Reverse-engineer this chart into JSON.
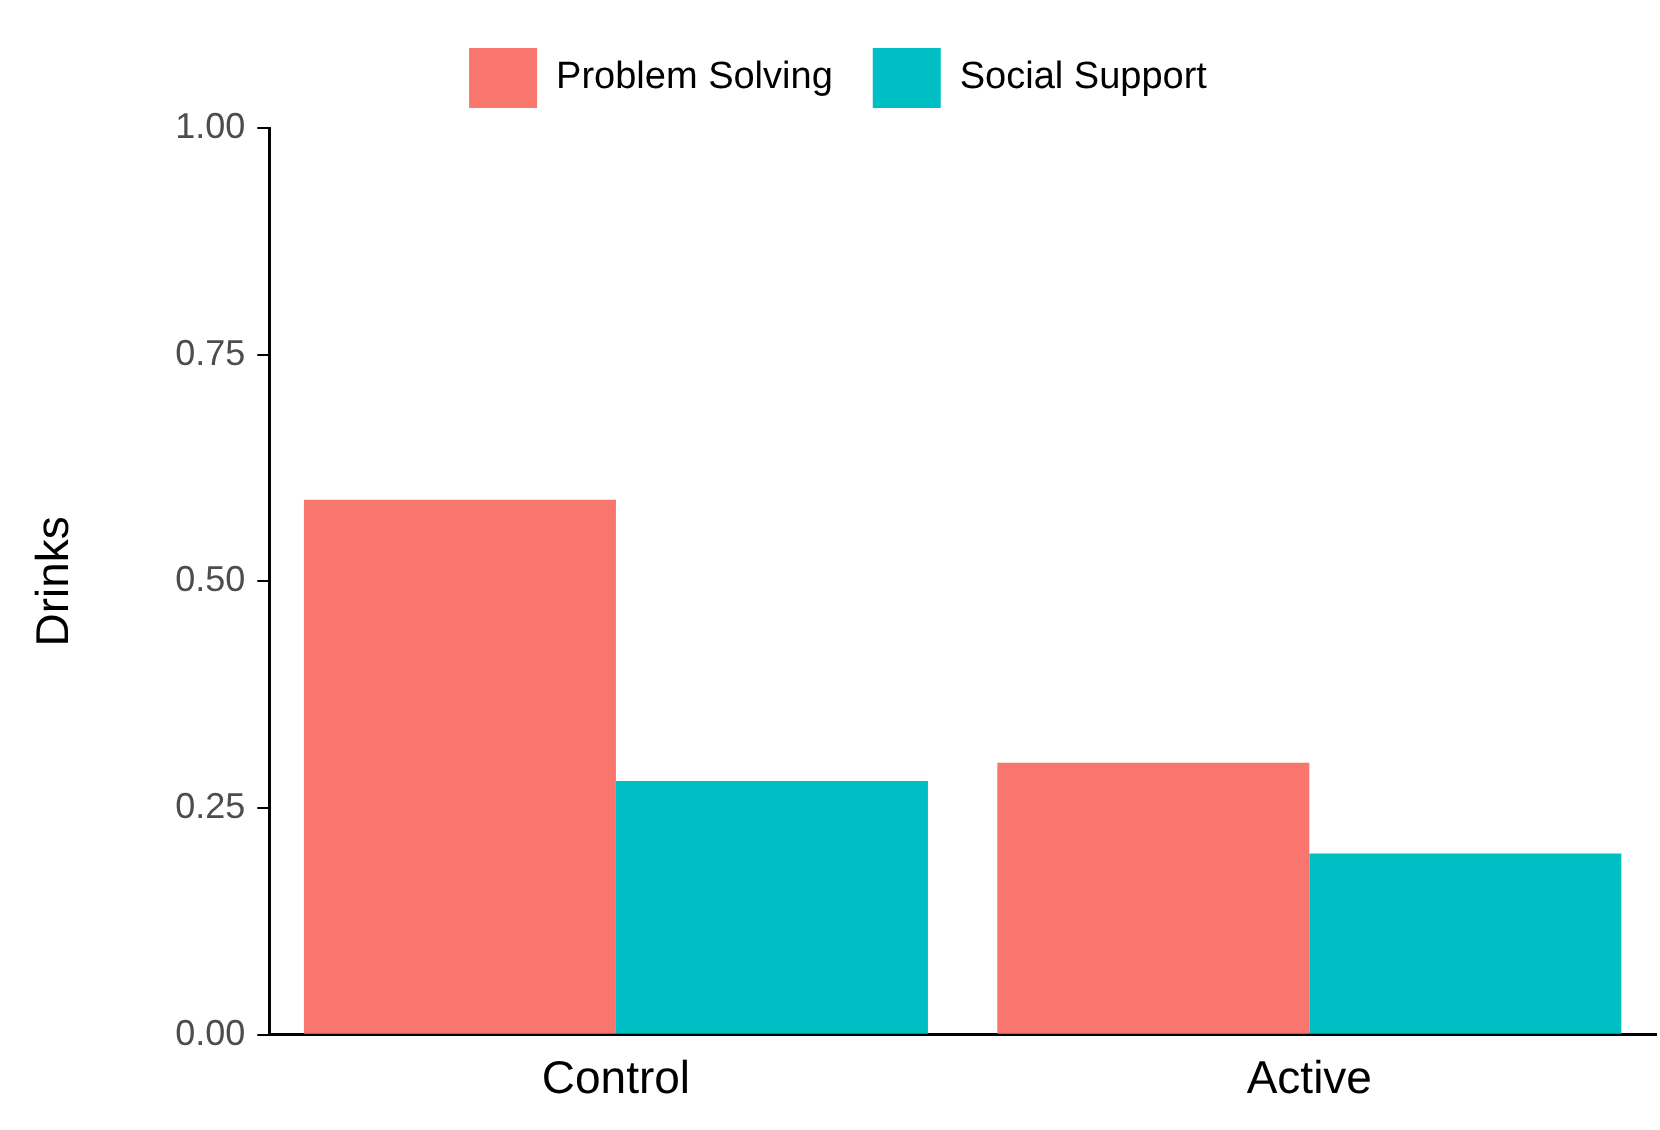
{
  "chart_data": {
    "type": "bar",
    "ylabel": "Drinks",
    "categories": [
      "Control",
      "Active"
    ],
    "series": [
      {
        "name": "Problem Solving",
        "color": "#f8766d",
        "values": [
          0.59,
          0.3
        ]
      },
      {
        "name": "Social Support",
        "color": "#00bfc4",
        "values": [
          0.28,
          0.2
        ]
      }
    ],
    "ylim": [
      0,
      1
    ],
    "yticks": [
      {
        "value": 0,
        "label": "0.00"
      },
      {
        "value": 0.25,
        "label": "0.25"
      },
      {
        "value": 0.5,
        "label": "0.50"
      },
      {
        "value": 0.75,
        "label": "0.75"
      },
      {
        "value": 1,
        "label": "1.00"
      }
    ],
    "grid": false,
    "legend": "top"
  }
}
